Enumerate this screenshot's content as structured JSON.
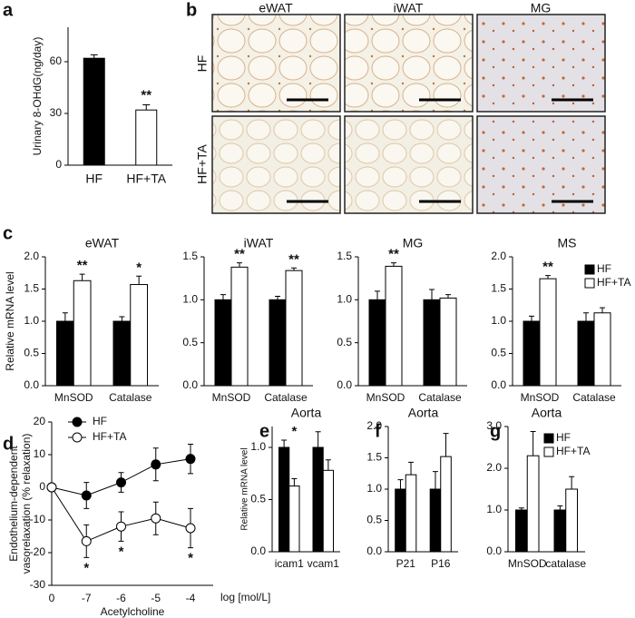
{
  "histology": {
    "label": "b",
    "columns": [
      "eWAT",
      "iWAT",
      "MG"
    ],
    "rows": [
      "HF",
      "HF+TA"
    ]
  },
  "chart_data": [
    {
      "type": "bar",
      "label": "a",
      "ylabel": "Urinary 8-OHdG(ng/day)",
      "categories": [
        "HF",
        "HF+TA"
      ],
      "values": [
        62,
        32
      ],
      "errors": [
        2,
        3
      ],
      "colors": [
        "#000000",
        "#ffffff"
      ],
      "significance": [
        null,
        "**"
      ],
      "ylim": [
        0,
        80
      ],
      "yticks": [
        0,
        30,
        60
      ]
    },
    {
      "type": "grouped_bar",
      "label": "c",
      "title": "eWAT",
      "ylabel": "Relative mRNA level",
      "categories": [
        "MnSOD",
        "Catalase"
      ],
      "series": [
        {
          "name": "HF",
          "color": "#000000",
          "values": [
            1.0,
            1.0
          ],
          "errors": [
            0.13,
            0.07
          ]
        },
        {
          "name": "HF+TA",
          "color": "#ffffff",
          "values": [
            1.63,
            1.57
          ],
          "errors": [
            0.1,
            0.13
          ]
        }
      ],
      "significance": [
        "**",
        "*"
      ],
      "ylim": [
        0,
        2
      ],
      "yticks": [
        {
          "value": 0,
          "label": "0.0"
        },
        0.5,
        {
          "value": 1,
          "label": "1.0"
        },
        1.5,
        {
          "value": 2,
          "label": "2.0"
        }
      ]
    },
    {
      "type": "grouped_bar",
      "title": "iWAT",
      "categories": [
        "MnSOD",
        "Catalase"
      ],
      "series": [
        {
          "name": "HF",
          "color": "#000000",
          "values": [
            1.0,
            1.0
          ],
          "errors": [
            0.06,
            0.04
          ]
        },
        {
          "name": "HF+TA",
          "color": "#ffffff",
          "values": [
            1.38,
            1.34
          ],
          "errors": [
            0.05,
            0.03
          ]
        }
      ],
      "significance": [
        "**",
        "**"
      ],
      "ylim": [
        0,
        1.5
      ],
      "yticks": [
        {
          "value": 0,
          "label": "0.0"
        },
        0.5,
        {
          "value": 1,
          "label": "1.0"
        },
        1.5
      ]
    },
    {
      "type": "grouped_bar",
      "title": "MG",
      "categories": [
        "MnSOD",
        "Catalase"
      ],
      "series": [
        {
          "name": "HF",
          "color": "#000000",
          "values": [
            1.0,
            1.0
          ],
          "errors": [
            0.1,
            0.12
          ]
        },
        {
          "name": "HF+TA",
          "color": "#ffffff",
          "values": [
            1.39,
            1.02
          ],
          "errors": [
            0.04,
            0.04
          ]
        }
      ],
      "significance": [
        "**",
        null
      ],
      "ylim": [
        0,
        1.5
      ],
      "yticks": [
        {
          "value": 0,
          "label": "0.0"
        },
        0.5,
        {
          "value": 1,
          "label": "1.0"
        },
        1.5
      ]
    },
    {
      "type": "grouped_bar",
      "title": "MS",
      "categories": [
        "MnSOD",
        "Catalase"
      ],
      "legend": true,
      "series": [
        {
          "name": "HF",
          "color": "#000000",
          "values": [
            1.0,
            1.0
          ],
          "errors": [
            0.08,
            0.13
          ]
        },
        {
          "name": "HF+TA",
          "color": "#ffffff",
          "values": [
            1.66,
            1.13
          ],
          "errors": [
            0.05,
            0.08
          ]
        }
      ],
      "significance": [
        "**",
        null
      ],
      "ylim": [
        0,
        2
      ],
      "yticks": [
        {
          "value": 0,
          "label": "0.0"
        },
        0.5,
        {
          "value": 1,
          "label": "1.0"
        },
        1.5,
        {
          "value": 2,
          "label": "2.0"
        }
      ]
    },
    {
      "type": "line",
      "label": "d",
      "ylabel": [
        "Endothelium-dependent",
        "vasorelaxation (% relaxation)"
      ],
      "xlabel": "Acetylcholine",
      "xunit": "log [mol/L]",
      "categories": [
        "0",
        "-7",
        "-6",
        "-5",
        "-4"
      ],
      "legend": true,
      "series": [
        {
          "name": "HF",
          "color": "#000000",
          "values": [
            0,
            -2.5,
            1.5,
            7,
            8.7
          ],
          "errors": [
            0,
            4,
            3,
            5,
            4.5
          ]
        },
        {
          "name": "HF+TA",
          "color": "#ffffff",
          "values": [
            0,
            -16.5,
            -12,
            -9.5,
            -12.5
          ],
          "errors": [
            0,
            5,
            4.5,
            5,
            6
          ]
        }
      ],
      "significance": [
        null,
        "*",
        "*",
        null,
        "*"
      ],
      "ylim": [
        -30,
        20
      ],
      "yticks": [
        -30,
        -20,
        -10,
        0,
        10,
        20
      ]
    },
    {
      "type": "grouped_bar",
      "label": "e",
      "title": "Aorta",
      "ylabel": "Relative mRNA level",
      "categories": [
        "icam1",
        "vcam1"
      ],
      "series": [
        {
          "name": "HF",
          "color": "#000000",
          "values": [
            1.0,
            1.0
          ],
          "errors": [
            0.07,
            0.15
          ]
        },
        {
          "name": "HF+TA",
          "color": "#ffffff",
          "values": [
            0.63,
            0.78
          ],
          "errors": [
            0.07,
            0.1
          ]
        }
      ],
      "significance": [
        "*",
        null
      ],
      "ylim": [
        0,
        1.2
      ],
      "yticks": [
        {
          "value": 0,
          "label": "0.0"
        },
        0.5,
        {
          "value": 1,
          "label": "1.0"
        }
      ]
    },
    {
      "type": "grouped_bar",
      "label": "f",
      "title": "Aorta",
      "categories": [
        "P21",
        "P16"
      ],
      "series": [
        {
          "name": "HF",
          "color": "#000000",
          "values": [
            1.0,
            1.0
          ],
          "errors": [
            0.15,
            0.28
          ]
        },
        {
          "name": "HF+TA",
          "color": "#ffffff",
          "values": [
            1.23,
            1.52
          ],
          "errors": [
            0.2,
            0.37
          ]
        }
      ],
      "ylim": [
        0,
        2
      ],
      "yticks": [
        {
          "value": 0,
          "label": "0.0"
        },
        0.5,
        {
          "value": 1,
          "label": "1.0"
        },
        1.5,
        {
          "value": 2,
          "label": "2.0"
        }
      ]
    },
    {
      "type": "grouped_bar",
      "label": "g",
      "title": "Aorta",
      "categories": [
        "MnSOD",
        "catalase"
      ],
      "legend": true,
      "series": [
        {
          "name": "HF",
          "color": "#000000",
          "values": [
            1.0,
            1.0
          ],
          "errors": [
            0.05,
            0.1
          ]
        },
        {
          "name": "HF+TA",
          "color": "#ffffff",
          "values": [
            2.3,
            1.5
          ],
          "errors": [
            0.58,
            0.3
          ]
        }
      ],
      "ylim": [
        0,
        3
      ],
      "yticks": [
        {
          "value": 0,
          "label": "0.0"
        },
        {
          "value": 1,
          "label": "1.0"
        },
        {
          "value": 2,
          "label": "2.0"
        },
        {
          "value": 3,
          "label": "3.0"
        }
      ]
    }
  ]
}
